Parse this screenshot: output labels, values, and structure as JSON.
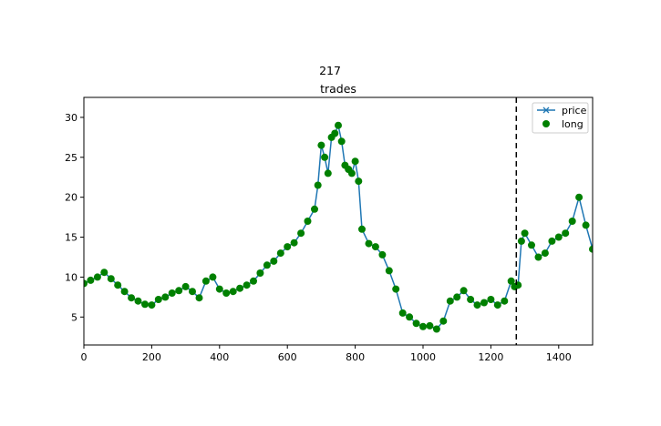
{
  "figure": {
    "suptitle": "217"
  },
  "chart_data": {
    "type": "line",
    "title": "trades",
    "xlabel": "",
    "ylabel": "",
    "xlim": [
      0,
      1500
    ],
    "ylim": [
      1.5,
      32.5
    ],
    "xticks": [
      "0",
      "200",
      "400",
      "600",
      "800",
      "1000",
      "1200",
      "1400"
    ],
    "yticks": [
      "5",
      "10",
      "15",
      "20",
      "25",
      "30"
    ],
    "grid": false,
    "legend_position": "top-right",
    "vline": {
      "x": 1275,
      "style": "dashed",
      "color": "#000000"
    },
    "series": [
      {
        "name": "price",
        "kind": "line",
        "marker": "x",
        "color": "#1f77b4",
        "x": [
          0,
          20,
          40,
          60,
          80,
          100,
          120,
          140,
          160,
          180,
          200,
          220,
          240,
          260,
          280,
          300,
          320,
          340,
          360,
          380,
          400,
          420,
          440,
          460,
          480,
          500,
          520,
          540,
          560,
          580,
          600,
          620,
          640,
          660,
          680,
          690,
          700,
          710,
          720,
          730,
          740,
          750,
          760,
          770,
          780,
          790,
          800,
          810,
          820,
          840,
          860,
          880,
          900,
          920,
          940,
          960,
          980,
          1000,
          1020,
          1040,
          1060,
          1080,
          1100,
          1120,
          1140,
          1160,
          1180,
          1200,
          1220,
          1240,
          1260,
          1270,
          1280,
          1290,
          1300,
          1320,
          1340,
          1360,
          1380,
          1400,
          1420,
          1440,
          1460,
          1480,
          1500
        ],
        "y": [
          9.2,
          9.6,
          10.0,
          10.6,
          9.8,
          9.0,
          8.2,
          7.4,
          7.0,
          6.6,
          6.5,
          7.2,
          7.5,
          8.0,
          8.3,
          8.8,
          8.2,
          7.4,
          9.5,
          10.0,
          8.5,
          8.0,
          8.2,
          8.6,
          9.0,
          9.5,
          10.5,
          11.5,
          12.0,
          13.0,
          13.8,
          14.3,
          15.5,
          17.0,
          18.5,
          21.5,
          26.5,
          25.0,
          23.0,
          27.5,
          28.0,
          29.0,
          27.0,
          24.0,
          23.5,
          23.0,
          24.5,
          22.0,
          16.0,
          14.2,
          13.8,
          12.8,
          10.8,
          8.5,
          5.5,
          5.0,
          4.2,
          3.8,
          3.9,
          3.5,
          4.5,
          7.0,
          7.5,
          8.3,
          7.2,
          6.5,
          6.8,
          7.2,
          6.5,
          7.0,
          9.5,
          8.8,
          9.0,
          14.5,
          15.5,
          14.0,
          12.5,
          13.0,
          14.5,
          15.0,
          15.5,
          17.0,
          20.0,
          16.5,
          13.5
        ]
      },
      {
        "name": "long",
        "kind": "scatter",
        "marker": "o",
        "color": "#008000",
        "x": [
          0,
          20,
          40,
          60,
          80,
          100,
          120,
          140,
          160,
          180,
          200,
          220,
          240,
          260,
          280,
          300,
          320,
          340,
          360,
          380,
          400,
          420,
          440,
          460,
          480,
          500,
          520,
          540,
          560,
          580,
          600,
          620,
          640,
          660,
          680,
          690,
          700,
          710,
          720,
          730,
          740,
          750,
          760,
          770,
          780,
          790,
          800,
          810,
          820,
          840,
          860,
          880,
          900,
          920,
          940,
          960,
          980,
          1000,
          1020,
          1040,
          1060,
          1080,
          1100,
          1120,
          1140,
          1160,
          1180,
          1200,
          1220,
          1240,
          1260,
          1270,
          1280,
          1290,
          1300,
          1320,
          1340,
          1360,
          1380,
          1400,
          1420,
          1440,
          1460,
          1480,
          1500
        ],
        "y": [
          9.2,
          9.6,
          10.0,
          10.6,
          9.8,
          9.0,
          8.2,
          7.4,
          7.0,
          6.6,
          6.5,
          7.2,
          7.5,
          8.0,
          8.3,
          8.8,
          8.2,
          7.4,
          9.5,
          10.0,
          8.5,
          8.0,
          8.2,
          8.6,
          9.0,
          9.5,
          10.5,
          11.5,
          12.0,
          13.0,
          13.8,
          14.3,
          15.5,
          17.0,
          18.5,
          21.5,
          26.5,
          25.0,
          23.0,
          27.5,
          28.0,
          29.0,
          27.0,
          24.0,
          23.5,
          23.0,
          24.5,
          22.0,
          16.0,
          14.2,
          13.8,
          12.8,
          10.8,
          8.5,
          5.5,
          5.0,
          4.2,
          3.8,
          3.9,
          3.5,
          4.5,
          7.0,
          7.5,
          8.3,
          7.2,
          6.5,
          6.8,
          7.2,
          6.5,
          7.0,
          9.5,
          8.8,
          9.0,
          14.5,
          15.5,
          14.0,
          12.5,
          13.0,
          14.5,
          15.0,
          15.5,
          17.0,
          20.0,
          16.5,
          13.5
        ]
      }
    ]
  }
}
